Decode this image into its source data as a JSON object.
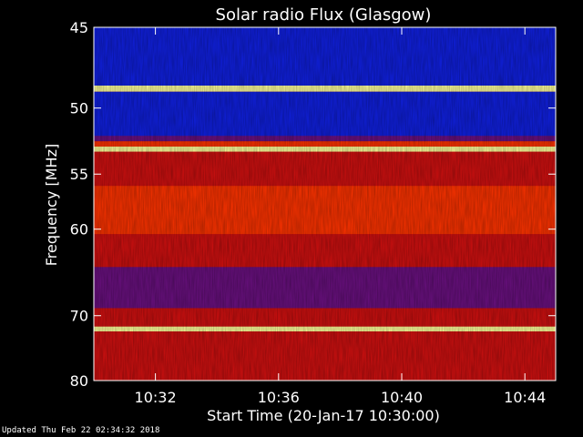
{
  "chart_data": {
    "type": "heatmap",
    "title": "Solar radio Flux (Glasgow)",
    "xlabel": "Start Time (20-Jan-17 10:30:00)",
    "ylabel": "Frequency [MHz]",
    "x_ticks": [
      "10:32",
      "10:36",
      "10:40",
      "10:44"
    ],
    "x_tick_minutes": [
      2,
      6,
      10,
      14
    ],
    "xlim_minutes": [
      0,
      15
    ],
    "y_ticks": [
      45,
      50,
      55,
      60,
      70,
      80
    ],
    "ylim": [
      45,
      80
    ],
    "y_scale": "reciprocal",
    "grid": false,
    "colors": {
      "high": "#ffff99",
      "strong": "#ff3300",
      "medium": "#d01010",
      "low": "#6a1080",
      "background_band": "#1020e0"
    },
    "bands": [
      {
        "from": 45.0,
        "to": 48.5,
        "level": "background_band"
      },
      {
        "from": 48.5,
        "to": 48.9,
        "level": "high"
      },
      {
        "from": 48.9,
        "to": 52.0,
        "level": "background_band"
      },
      {
        "from": 52.0,
        "to": 52.4,
        "level": "low"
      },
      {
        "from": 52.4,
        "to": 52.8,
        "level": "strong"
      },
      {
        "from": 52.8,
        "to": 53.2,
        "level": "high"
      },
      {
        "from": 53.2,
        "to": 56.0,
        "level": "medium"
      },
      {
        "from": 56.0,
        "to": 60.5,
        "level": "strong"
      },
      {
        "from": 60.5,
        "to": 64.0,
        "level": "medium"
      },
      {
        "from": 64.0,
        "to": 69.0,
        "level": "low"
      },
      {
        "from": 69.0,
        "to": 71.5,
        "level": "medium"
      },
      {
        "from": 71.5,
        "to": 72.2,
        "level": "high"
      },
      {
        "from": 72.2,
        "to": 80.0,
        "level": "medium"
      }
    ]
  },
  "footer": {
    "updated": "Updated Thu Feb 22 02:34:32 2018"
  }
}
